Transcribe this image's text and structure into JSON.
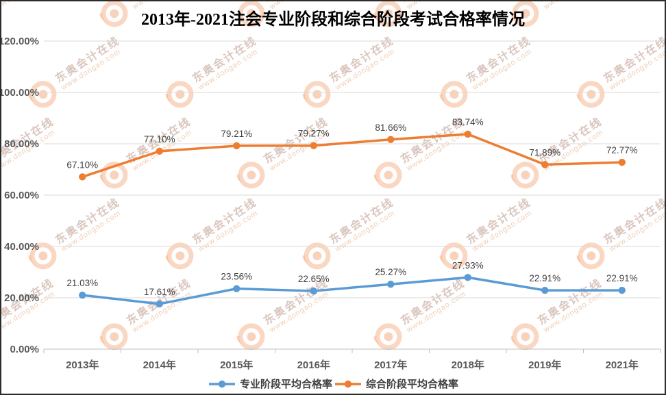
{
  "title": "2013年-2021注会专业阶段和综合阶段考试合格率情况",
  "colors": {
    "professional_series": "#5B9BD5",
    "comprehensive_series": "#ED7D31",
    "gridline": "#D9D9D9",
    "axis_line": "#BFBFBF",
    "axis_text": "#595959",
    "data_label_text": "#3f3f3f"
  },
  "watermark": {
    "line1": "东奥会计在线",
    "line2": "www.dongao.com"
  },
  "chart_data": {
    "type": "line",
    "title": "2013年-2021注会专业阶段和综合阶段考试合格率情况",
    "categories": [
      "2013年",
      "2014年",
      "2015年",
      "2016年",
      "2017年",
      "2018年",
      "2019年",
      "2021年"
    ],
    "series": [
      {
        "name": "专业阶段平均合格率",
        "color": "#5B9BD5",
        "values": [
          21.03,
          17.61,
          23.56,
          22.65,
          25.27,
          27.93,
          22.91,
          22.91
        ],
        "labels": [
          "21.03%",
          "17.61%",
          "23.56%",
          "22.65%",
          "25.27%",
          "27.93%",
          "22.91%",
          "22.91%"
        ]
      },
      {
        "name": "综合阶段平均合格率",
        "color": "#ED7D31",
        "values": [
          67.1,
          77.1,
          79.21,
          79.27,
          81.66,
          83.74,
          71.89,
          72.77
        ],
        "labels": [
          "67.10%",
          "77.10%",
          "79.21%",
          "79.27%",
          "81.66%",
          "83.74%",
          "71.89%",
          "72.77%"
        ]
      }
    ],
    "y_axis": {
      "min": 0,
      "max": 120,
      "step": 20,
      "tick_labels": [
        "0.00%",
        "20.00%",
        "40.00%",
        "60.00%",
        "80.00%",
        "100.00%",
        "120.00%"
      ]
    },
    "xlabel": "",
    "ylabel": "",
    "grid": true,
    "legend_position": "bottom"
  }
}
